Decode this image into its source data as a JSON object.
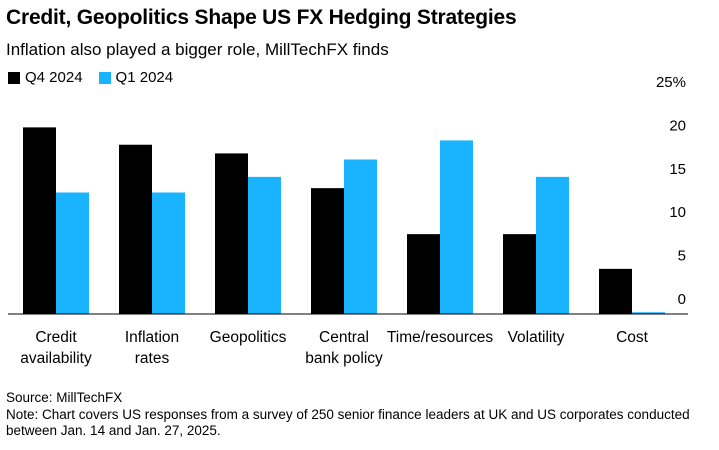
{
  "title": "Credit, Geopolitics Shape US FX Hedging Strategies",
  "subtitle": "Inflation also played a bigger role, MillTechFX finds",
  "legend": [
    {
      "name": "Q4 2024",
      "color": "#000000"
    },
    {
      "name": "Q1 2024",
      "color": "#1ab3ff"
    }
  ],
  "chart_data": {
    "type": "bar",
    "categories": [
      [
        "Credit",
        "availability"
      ],
      [
        "Inflation",
        "rates"
      ],
      [
        "Geopolitics"
      ],
      [
        "Central",
        "bank policy"
      ],
      [
        "Time/resources"
      ],
      [
        "Volatility"
      ],
      [
        "Cost"
      ]
    ],
    "series": [
      {
        "name": "Q4 2024",
        "color": "#000000",
        "values": [
          21.5,
          19.5,
          18.5,
          14.5,
          9.2,
          9.2,
          5.2
        ]
      },
      {
        "name": "Q1 2024",
        "color": "#1ab3ff",
        "values": [
          14,
          14,
          15.8,
          17.8,
          20,
          15.8,
          0.2
        ]
      }
    ],
    "y_ticks": [
      "25%",
      "20",
      "15",
      "10",
      "5",
      "0"
    ],
    "ylim": [
      0,
      25
    ],
    "grid": false,
    "legend_position": "top-left"
  },
  "footer": {
    "source": "Source: MillTechFX",
    "note": "Note: Chart covers US responses from a survey of 250 senior finance leaders at UK and US corporates conducted between Jan. 14 and Jan. 27, 2025."
  }
}
